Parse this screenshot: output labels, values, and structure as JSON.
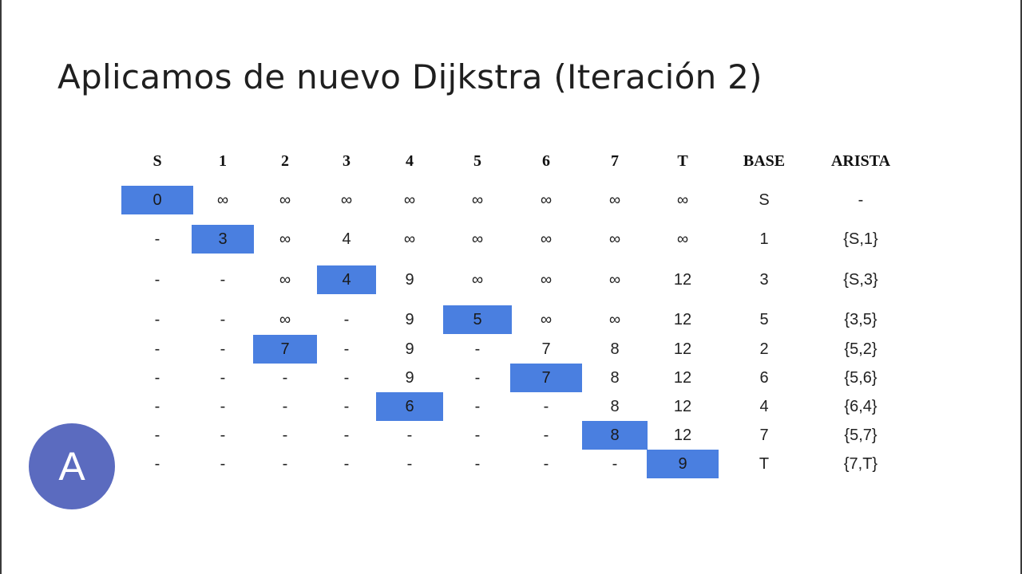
{
  "title": "Aplicamos de nuevo Dijkstra (Iteración 2)",
  "columns": [
    "S",
    "1",
    "2",
    "3",
    "4",
    "5",
    "6",
    "7",
    "T",
    "BASE",
    "ARISTA"
  ],
  "rows": [
    {
      "cells": [
        "0",
        "∞",
        "∞",
        "∞",
        "∞",
        "∞",
        "∞",
        "∞",
        "∞",
        "S",
        "-"
      ],
      "selected_index": 0
    },
    {
      "cells": [
        "-",
        "3",
        "∞",
        "4",
        "∞",
        "∞",
        "∞",
        "∞",
        "∞",
        "1",
        "{S,1}"
      ],
      "selected_index": 1
    },
    {
      "cells": [
        "-",
        "-",
        "∞",
        "4",
        "9",
        "∞",
        "∞",
        "∞",
        "12",
        "3",
        "{S,3}"
      ],
      "selected_index": 3
    },
    {
      "cells": [
        "-",
        "-",
        "∞",
        "-",
        "9",
        "5",
        "∞",
        "∞",
        "12",
        "5",
        "{3,5}"
      ],
      "selected_index": 5
    },
    {
      "cells": [
        "-",
        "-",
        "7",
        "-",
        "9",
        "-",
        "7",
        "8",
        "12",
        "2",
        "{5,2}"
      ],
      "selected_index": 2
    },
    {
      "cells": [
        "-",
        "-",
        "-",
        "-",
        "9",
        "-",
        "7",
        "8",
        "12",
        "6",
        "{5,6}"
      ],
      "selected_index": 6
    },
    {
      "cells": [
        "-",
        "-",
        "-",
        "-",
        "6",
        "-",
        "-",
        "8",
        "12",
        "4",
        "{6,4}"
      ],
      "selected_index": 4
    },
    {
      "cells": [
        "-",
        "-",
        "-",
        "-",
        "-",
        "-",
        "-",
        "8",
        "12",
        "7",
        "{5,7}"
      ],
      "selected_index": 7
    },
    {
      "cells": [
        "-",
        "-",
        "-",
        "-",
        "-",
        "-",
        "-",
        "-",
        "9",
        "T",
        "{7,T}"
      ],
      "selected_index": 8
    }
  ],
  "avatar_letter": "A",
  "colors": {
    "highlight": "#4a7fe0",
    "avatar": "#5b6bbf"
  }
}
